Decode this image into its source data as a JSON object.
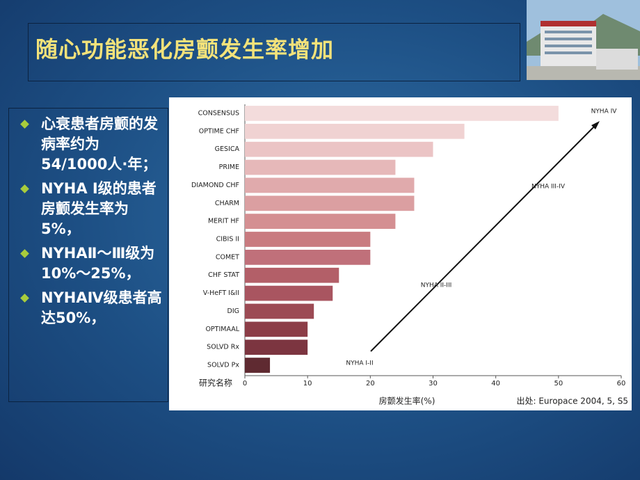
{
  "slide": {
    "title": "随心功能恶化房颤发生率增加",
    "bullets": [
      "心衰患者房颤的发病率约为54/1000人·年；",
      "NYHA Ⅰ级的患者房颤发生率为5%，",
      "NYHAⅡ～Ⅲ级为10%～25%，",
      "NYHAⅣ级患者高达50%，"
    ]
  },
  "chart_data": {
    "type": "bar",
    "horizontal": true,
    "categories": [
      "CONSENSUS",
      "OPTIME CHF",
      "GESICA",
      "PRIME",
      "DIAMOND CHF",
      "CHARM",
      "MERIT HF",
      "CIBIS II",
      "COMET",
      "CHF STAT",
      "V-HeFT I&II",
      "DIG",
      "OPTIMAAL",
      "SOLVD Rx",
      "SOLVD Px"
    ],
    "values": [
      50,
      35,
      30,
      24,
      27,
      27,
      24,
      20,
      20,
      15,
      14,
      11,
      10,
      10,
      4
    ],
    "colors": [
      "#f3dcdc",
      "#f0d2d2",
      "#ebc4c5",
      "#e6b8b9",
      "#e0aaac",
      "#db9fa1",
      "#d48f92",
      "#c97b80",
      "#c0707a",
      "#b35f68",
      "#a95560",
      "#9c4a54",
      "#8c3d47",
      "#7c3540",
      "#5f2a31"
    ],
    "xlim": [
      0,
      60
    ],
    "xticks": [
      0,
      10,
      20,
      30,
      40,
      50,
      60
    ],
    "xlabel": "房颤发生率(%)",
    "ylabel": "研究名称",
    "source": "出处: Europace 2004, 5, S5",
    "annotations": [
      "NYHA IV",
      "NYHA III-IV",
      "NYHA II-III",
      "NYHA I-II"
    ]
  }
}
